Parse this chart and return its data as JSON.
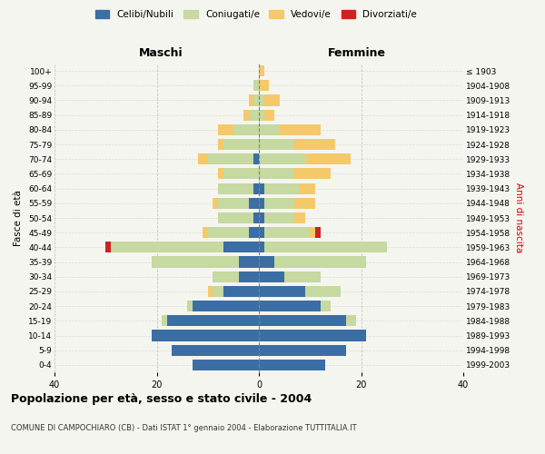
{
  "age_groups": [
    "0-4",
    "5-9",
    "10-14",
    "15-19",
    "20-24",
    "25-29",
    "30-34",
    "35-39",
    "40-44",
    "45-49",
    "50-54",
    "55-59",
    "60-64",
    "65-69",
    "70-74",
    "75-79",
    "80-84",
    "85-89",
    "90-94",
    "95-99",
    "100+"
  ],
  "birth_years": [
    "1999-2003",
    "1994-1998",
    "1989-1993",
    "1984-1988",
    "1979-1983",
    "1974-1978",
    "1969-1973",
    "1964-1968",
    "1959-1963",
    "1954-1958",
    "1949-1953",
    "1944-1948",
    "1939-1943",
    "1934-1938",
    "1929-1933",
    "1924-1928",
    "1919-1923",
    "1914-1918",
    "1909-1913",
    "1904-1908",
    "≤ 1903"
  ],
  "male": {
    "celibe": [
      13,
      17,
      21,
      18,
      13,
      7,
      4,
      4,
      7,
      2,
      1,
      2,
      1,
      0,
      1,
      0,
      0,
      0,
      0,
      0,
      0
    ],
    "coniugato": [
      0,
      0,
      0,
      1,
      1,
      2,
      5,
      17,
      22,
      8,
      7,
      6,
      7,
      7,
      9,
      7,
      5,
      2,
      1,
      1,
      0
    ],
    "vedovo": [
      0,
      0,
      0,
      0,
      0,
      1,
      0,
      0,
      0,
      1,
      0,
      1,
      0,
      1,
      2,
      1,
      3,
      1,
      1,
      0,
      0
    ],
    "divorziato": [
      0,
      0,
      0,
      0,
      0,
      0,
      0,
      0,
      1,
      0,
      0,
      0,
      0,
      0,
      0,
      0,
      0,
      0,
      0,
      0,
      0
    ]
  },
  "female": {
    "nubile": [
      13,
      17,
      21,
      17,
      12,
      9,
      5,
      3,
      1,
      1,
      1,
      1,
      1,
      0,
      0,
      0,
      0,
      0,
      0,
      0,
      0
    ],
    "coniugata": [
      0,
      0,
      0,
      2,
      2,
      7,
      7,
      18,
      24,
      9,
      6,
      6,
      7,
      7,
      9,
      7,
      4,
      1,
      1,
      0,
      0
    ],
    "vedova": [
      0,
      0,
      0,
      0,
      0,
      0,
      0,
      0,
      0,
      1,
      2,
      4,
      3,
      7,
      9,
      8,
      8,
      2,
      3,
      2,
      1
    ],
    "divorziata": [
      0,
      0,
      0,
      0,
      0,
      0,
      0,
      0,
      0,
      1,
      0,
      0,
      0,
      0,
      0,
      0,
      0,
      0,
      0,
      0,
      0
    ]
  },
  "colors": {
    "celibe": "#3a6ea5",
    "coniugato": "#c5d9a0",
    "vedovo": "#f5c96a",
    "divorziato": "#cc2222"
  },
  "title": "Popolazione per età, sesso e stato civile - 2004",
  "subtitle": "COMUNE DI CAMPOCHIARO (CB) - Dati ISTAT 1° gennaio 2004 - Elaborazione TUTTITALIA.IT",
  "xlabel_left": "Maschi",
  "xlabel_right": "Femmine",
  "ylabel_left": "Fasce di età",
  "ylabel_right": "Anni di nascita",
  "xlim": 40,
  "legend_labels": [
    "Celibi/Nubili",
    "Coniugati/e",
    "Vedovi/e",
    "Divorziati/e"
  ],
  "background_color": "#f5f5f0"
}
